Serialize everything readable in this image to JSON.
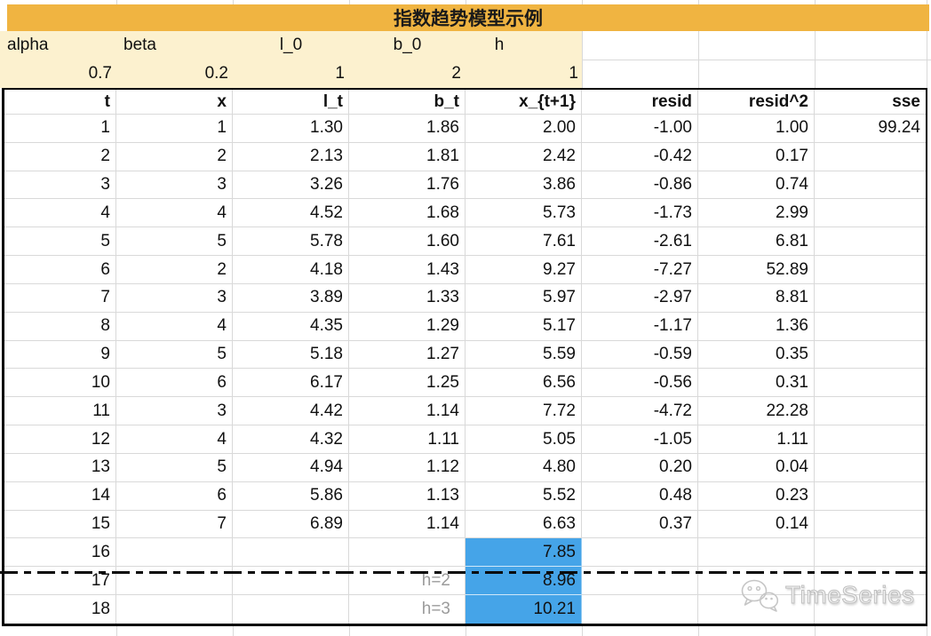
{
  "title": "指数趋势模型示例",
  "parameters": {
    "labels": [
      "alpha",
      "beta",
      "l_0",
      "b_0",
      "h"
    ],
    "values": [
      "0.7",
      "0.2",
      "1",
      "2",
      "1"
    ]
  },
  "table": {
    "headers": [
      "t",
      "x",
      "l_t",
      "b_t",
      "x_{t+1}",
      "resid",
      "resid^2",
      "sse"
    ],
    "rows": [
      [
        "1",
        "1",
        "1.30",
        "1.86",
        "2.00",
        "-1.00",
        "1.00",
        "99.24"
      ],
      [
        "2",
        "2",
        "2.13",
        "1.81",
        "2.42",
        "-0.42",
        "0.17",
        ""
      ],
      [
        "3",
        "3",
        "3.26",
        "1.76",
        "3.86",
        "-0.86",
        "0.74",
        ""
      ],
      [
        "4",
        "4",
        "4.52",
        "1.68",
        "5.73",
        "-1.73",
        "2.99",
        ""
      ],
      [
        "5",
        "5",
        "5.78",
        "1.60",
        "7.61",
        "-2.61",
        "6.81",
        ""
      ],
      [
        "6",
        "2",
        "4.18",
        "1.43",
        "9.27",
        "-7.27",
        "52.89",
        ""
      ],
      [
        "7",
        "3",
        "3.89",
        "1.33",
        "5.97",
        "-2.97",
        "8.81",
        ""
      ],
      [
        "8",
        "4",
        "4.35",
        "1.29",
        "5.17",
        "-1.17",
        "1.36",
        ""
      ],
      [
        "9",
        "5",
        "5.18",
        "1.27",
        "5.59",
        "-0.59",
        "0.35",
        ""
      ],
      [
        "10",
        "6",
        "6.17",
        "1.25",
        "6.56",
        "-0.56",
        "0.31",
        ""
      ],
      [
        "11",
        "3",
        "4.42",
        "1.14",
        "7.72",
        "-4.72",
        "22.28",
        ""
      ],
      [
        "12",
        "4",
        "4.32",
        "1.11",
        "5.05",
        "-1.05",
        "1.11",
        ""
      ],
      [
        "13",
        "5",
        "4.94",
        "1.12",
        "4.80",
        "0.20",
        "0.04",
        ""
      ],
      [
        "14",
        "6",
        "5.86",
        "1.13",
        "5.52",
        "0.48",
        "0.23",
        ""
      ],
      [
        "15",
        "7",
        "6.89",
        "1.14",
        "6.63",
        "0.37",
        "0.14",
        ""
      ],
      [
        "16",
        "",
        "",
        "",
        "7.85",
        "",
        "",
        ""
      ],
      [
        "17",
        "",
        "",
        "h=2",
        "8.96",
        "",
        "",
        ""
      ],
      [
        "18",
        "",
        "",
        "h=3",
        "10.21",
        "",
        "",
        ""
      ]
    ]
  },
  "highlights": {
    "blue_cells": [
      [
        15,
        4
      ],
      [
        16,
        4
      ],
      [
        17,
        4
      ]
    ],
    "gray_note_cells": [
      [
        16,
        3
      ],
      [
        17,
        3
      ]
    ]
  },
  "divider": {
    "style": "dash-dot",
    "after_data_row": 16
  },
  "watermark": {
    "text": "TimeSeries",
    "icon": "wechat-chat-bubbles-icon"
  },
  "colors": {
    "title_bar": "#f0b441",
    "param_bg": "#fcf1cf",
    "highlight_blue": "#45a4e8",
    "gridline": "#d9d9d9",
    "note_gray": "#9b9b9b"
  }
}
